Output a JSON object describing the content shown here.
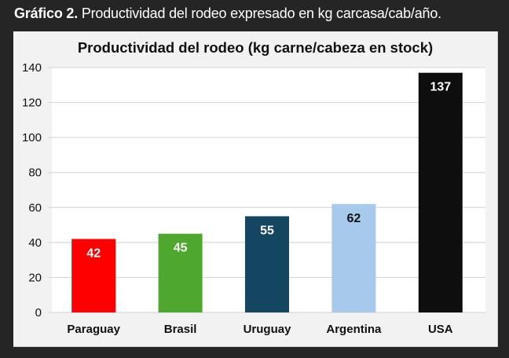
{
  "caption": {
    "bold": "Gráfico 2.",
    "text": " Productividad del rodeo expresado en kg carcasa/cab/año."
  },
  "chart_data": {
    "type": "bar",
    "title": "Productividad del rodeo (kg carne/cabeza en stock)",
    "xlabel": "",
    "ylabel": "",
    "categories": [
      "Paraguay",
      "Brasil",
      "Uruguay",
      "Argentina",
      "USA"
    ],
    "values": [
      42,
      45,
      55,
      62,
      137
    ],
    "colors": [
      "#ff0000",
      "#4ea72e",
      "#144561",
      "#a6c9ec",
      "#0e0e0e"
    ],
    "label_colors": [
      "#ffffff",
      "#ffffff",
      "#ffffff",
      "#111111",
      "#ffffff"
    ],
    "ylim": [
      0,
      140
    ],
    "yticks": [
      0,
      20,
      40,
      60,
      80,
      100,
      120,
      140
    ],
    "grid": true,
    "legend": "none",
    "data_labels": true
  }
}
